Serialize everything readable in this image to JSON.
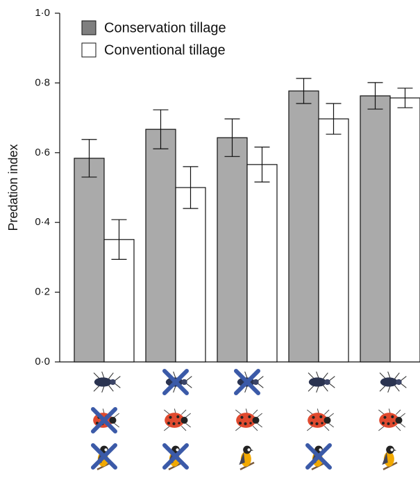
{
  "chart_data": {
    "type": "bar",
    "y_label": "Predation index",
    "categories": [
      null,
      null,
      null,
      null,
      null
    ],
    "series": [
      {
        "name": "Conservation tillage",
        "color": "#aaaaaa",
        "values": [
          0.584,
          0.667,
          0.643,
          0.777,
          0.763
        ],
        "errors": [
          0.054,
          0.056,
          0.054,
          0.036,
          0.038
        ]
      },
      {
        "name": "Conventional tillage",
        "color": "#ffffff",
        "values": [
          0.351,
          0.5,
          0.566,
          0.697,
          0.757
        ],
        "errors": [
          0.057,
          0.06,
          0.05,
          0.044,
          0.028
        ]
      }
    ],
    "ylim": [
      0,
      1
    ],
    "yticks": [
      {
        "value": 0,
        "label": "0·0"
      },
      {
        "value": 0.2,
        "label": "0·2"
      },
      {
        "value": 0.4,
        "label": "0·4"
      },
      {
        "value": 0.6,
        "label": "0·6"
      },
      {
        "value": 0.8,
        "label": "0·8"
      },
      {
        "value": 1,
        "label": "1·0"
      }
    ],
    "legend": "upper left"
  }
}
